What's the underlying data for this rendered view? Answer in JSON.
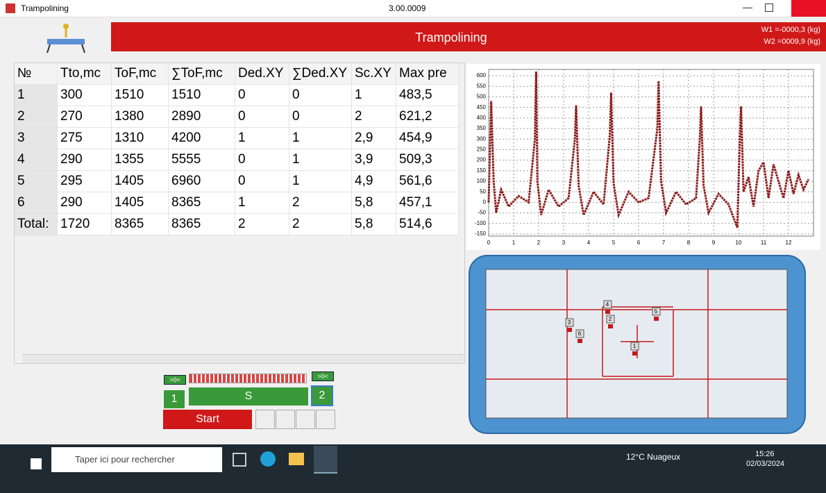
{
  "window": {
    "title": "Trampolining",
    "version": "3.00.0009"
  },
  "header": {
    "title": "Trampolining",
    "w1": "W1 =-0000,3 (kg)",
    "w2": "W2 =0009,9 (kg)"
  },
  "table": {
    "columns": [
      "№",
      "Tto,mc",
      "ToF,mc",
      "∑ToF,mc",
      "Ded.XY",
      "∑Ded.XY",
      "Sc.XY",
      "Max pre"
    ],
    "rows": [
      [
        "1",
        "300",
        "1510",
        "1510",
        "0",
        "0",
        "1",
        "483,5"
      ],
      [
        "2",
        "270",
        "1380",
        "2890",
        "0",
        "0",
        "2",
        "621,2"
      ],
      [
        "3",
        "275",
        "1310",
        "4200",
        "1",
        "1",
        "2,9",
        "454,9"
      ],
      [
        "4",
        "290",
        "1355",
        "5555",
        "0",
        "1",
        "3,9",
        "509,3"
      ],
      [
        "5",
        "295",
        "1405",
        "6960",
        "0",
        "1",
        "4,9",
        "561,6"
      ],
      [
        "6",
        "290",
        "1405",
        "8365",
        "1",
        "2",
        "5,8",
        "457,1"
      ],
      [
        "Total:",
        "1720",
        "8365",
        "8365",
        "2",
        "2",
        "5,8",
        "514,6"
      ]
    ]
  },
  "chart_data": {
    "type": "line",
    "color": "#8b1a1a",
    "grid": true,
    "x": [
      0,
      0.1,
      0.2,
      0.3,
      0.5,
      0.8,
      1.2,
      1.6,
      1.85,
      1.9,
      1.95,
      2.1,
      2.4,
      2.8,
      3.2,
      3.45,
      3.5,
      3.6,
      3.8,
      4.2,
      4.6,
      4.85,
      4.9,
      5.0,
      5.2,
      5.6,
      6.0,
      6.4,
      6.75,
      6.8,
      6.9,
      7.1,
      7.5,
      7.9,
      8.3,
      8.45,
      8.5,
      8.6,
      8.8,
      9.2,
      9.6,
      9.95,
      10.05,
      10.1,
      10.2,
      10.4,
      10.6,
      10.8,
      11.0,
      11.2,
      11.4,
      11.6,
      11.8,
      12.0,
      12.2,
      12.4,
      12.6,
      12.8
    ],
    "values": [
      0,
      480,
      100,
      -50,
      60,
      -20,
      30,
      0,
      300,
      620,
      100,
      -60,
      60,
      -20,
      20,
      300,
      460,
      80,
      -60,
      50,
      -10,
      320,
      520,
      90,
      -60,
      50,
      0,
      20,
      350,
      575,
      100,
      -50,
      50,
      -10,
      20,
      300,
      455,
      80,
      -50,
      40,
      -10,
      -120,
      300,
      455,
      50,
      120,
      -20,
      150,
      190,
      20,
      180,
      100,
      20,
      150,
      40,
      130,
      60,
      110
    ],
    "xlim": [
      0,
      13
    ],
    "ylim": [
      -160,
      630
    ],
    "xticks": [
      0,
      1,
      2,
      3,
      4,
      5,
      6,
      7,
      8,
      9,
      10,
      11,
      12
    ],
    "yticks": [
      -150,
      -100,
      -50,
      0,
      50,
      100,
      150,
      200,
      250,
      300,
      350,
      400,
      450,
      500,
      550,
      600
    ]
  },
  "trampoline": {
    "markers": [
      "1",
      "2",
      "3",
      "4",
      "5",
      "6"
    ]
  },
  "controls": {
    "zero_left": ">0<",
    "zero_right": ">0<",
    "judge1": "1",
    "s": "S",
    "judge2": "2",
    "start": "Start"
  },
  "taskbar": {
    "search": "Taper ici pour rechercher",
    "weather": "12°C  Nuageux",
    "time": "15:26",
    "date": "02/03/2024"
  }
}
